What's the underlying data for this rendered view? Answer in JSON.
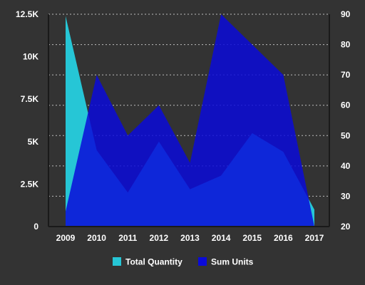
{
  "chart_data": {
    "type": "area",
    "title": "",
    "xlabel": "",
    "ylabel": "",
    "categories": [
      "2009",
      "2010",
      "2011",
      "2012",
      "2013",
      "2014",
      "2015",
      "2016",
      "2017"
    ],
    "series": [
      {
        "name": "Total Quantity",
        "axis": "left",
        "color": "#26c6d6",
        "values": [
          12400,
          4500,
          2000,
          5000,
          2200,
          3000,
          5500,
          4400,
          1000
        ]
      },
      {
        "name": "Sum Units",
        "axis": "right",
        "color": "#0a0ad9",
        "values": [
          25,
          70,
          50,
          60,
          41,
          90,
          80,
          70,
          20
        ]
      }
    ],
    "y_left": {
      "ylim": [
        0,
        12500
      ],
      "tick_values": [
        0,
        2500,
        5000,
        7500,
        10000,
        12500
      ],
      "tick_labels": [
        "0",
        "2.5K",
        "5K",
        "7.5K",
        "10K",
        "12.5K"
      ]
    },
    "y_right": {
      "ylim": [
        20,
        90
      ],
      "tick_values": [
        20,
        30,
        40,
        50,
        60,
        70,
        80,
        90
      ],
      "tick_labels": [
        "20",
        "30",
        "40",
        "50",
        "60",
        "70",
        "80",
        "90"
      ]
    },
    "grid": true,
    "legend_position": "bottom"
  }
}
